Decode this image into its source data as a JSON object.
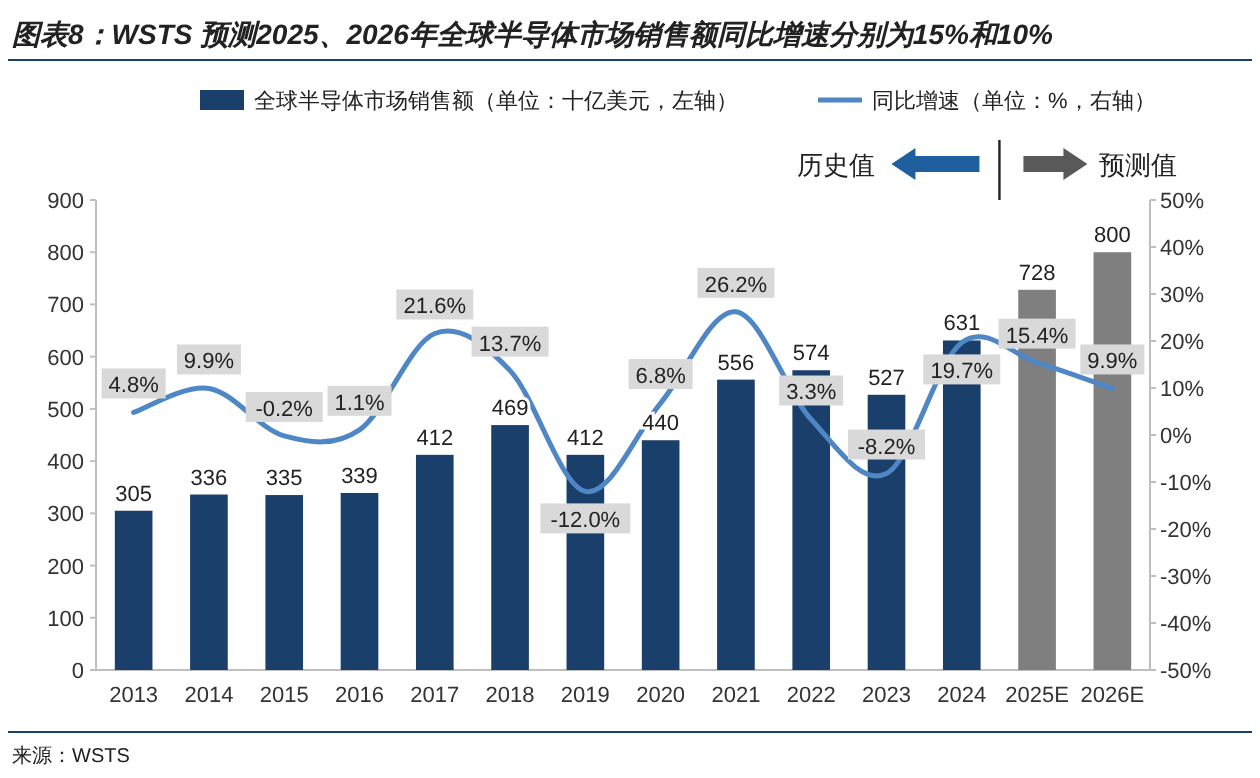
{
  "chart_data": {
    "type": "bar",
    "title": "图表8：WSTS 预测2025、2026年全球半导体市场销售额同比增速分别为15%和10%",
    "categories": [
      "2013",
      "2014",
      "2015",
      "2016",
      "2017",
      "2018",
      "2019",
      "2020",
      "2021",
      "2022",
      "2023",
      "2024",
      "2025E",
      "2026E"
    ],
    "series": [
      {
        "name": "全球半导体市场销售额（单位：十亿美元，左轴）",
        "colors": [
          "#1b3f6b",
          "#1b3f6b",
          "#1b3f6b",
          "#1b3f6b",
          "#1b3f6b",
          "#1b3f6b",
          "#1b3f6b",
          "#1b3f6b",
          "#1b3f6b",
          "#1b3f6b",
          "#1b3f6b",
          "#1b3f6b",
          "#7f7f7f",
          "#7f7f7f"
        ],
        "values": [
          305,
          336,
          335,
          339,
          412,
          469,
          412,
          440,
          556,
          574,
          527,
          631,
          728,
          800
        ],
        "value_labels": [
          "305",
          "336",
          "335",
          "339",
          "412",
          "469",
          "412",
          "440",
          "556",
          "574",
          "527",
          "631",
          "728",
          "800"
        ]
      },
      {
        "name": "同比增速（单位：%，右轴）",
        "type": "line",
        "axis": "y2",
        "color": "#4f86c6",
        "values": [
          4.8,
          9.9,
          -0.2,
          1.1,
          21.6,
          13.7,
          -12.0,
          6.8,
          26.2,
          3.3,
          -8.2,
          19.7,
          15.4,
          9.9
        ],
        "value_labels": [
          "4.8%",
          "9.9%",
          "-0.2%",
          "1.1%",
          "21.6%",
          "13.7%",
          "-12.0%",
          "6.8%",
          "26.2%",
          "3.3%",
          "-8.2%",
          "19.7%",
          "15.4%",
          "9.9%"
        ]
      }
    ],
    "ylim": [
      0,
      900
    ],
    "yticks": [
      0,
      100,
      200,
      300,
      400,
      500,
      600,
      700,
      800,
      900
    ],
    "y2lim": [
      -50,
      50
    ],
    "y2ticks": [
      {
        "value": -50,
        "label": "-50%"
      },
      {
        "value": -40,
        "label": "-40%"
      },
      {
        "value": -30,
        "label": "-30%"
      },
      {
        "value": -20,
        "label": "-20%"
      },
      {
        "value": -10,
        "label": "-10%"
      },
      {
        "value": 0,
        "label": "0%"
      },
      {
        "value": 10,
        "label": "10%"
      },
      {
        "value": 20,
        "label": "20%"
      },
      {
        "value": 30,
        "label": "30%"
      },
      {
        "value": 40,
        "label": "40%"
      },
      {
        "value": 50,
        "label": "50%"
      }
    ],
    "legend": "top",
    "grid": false,
    "annotations": [
      "历史值",
      "预测值",
      "来源：WSTS"
    ]
  }
}
